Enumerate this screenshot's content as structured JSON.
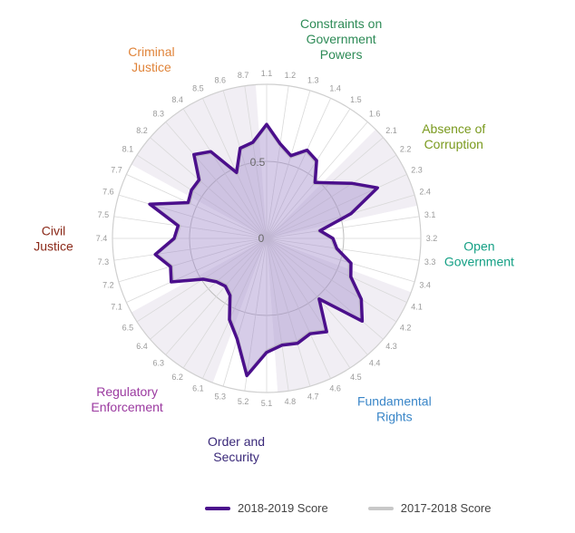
{
  "chart_data": {
    "type": "radar",
    "rlim": [
      0,
      1
    ],
    "ring_labels": [
      "0",
      "0.5"
    ],
    "factors": [
      {
        "name": [
          "Constraints on",
          "Government",
          "Powers"
        ],
        "color": "#2e8b57"
      },
      {
        "name": [
          "Absence of",
          "Corruption"
        ],
        "color": "#7a9a1e"
      },
      {
        "name": [
          "Open",
          "Government"
        ],
        "color": "#15a085"
      },
      {
        "name": [
          "Fundamental",
          "Rights"
        ],
        "color": "#3a86c8"
      },
      {
        "name": [
          "Order and",
          "Security"
        ],
        "color": "#3b2a7a"
      },
      {
        "name": [
          "Regulatory",
          "Enforcement"
        ],
        "color": "#9b3aa0"
      },
      {
        "name": [
          "Civil",
          "Justice"
        ],
        "color": "#8b2a1a"
      },
      {
        "name": [
          "Criminal",
          "Justice"
        ],
        "color": "#e0843a"
      }
    ],
    "categories": [
      "1.1",
      "1.2",
      "1.3",
      "1.4",
      "1.5",
      "1.6",
      "2.1",
      "2.2",
      "2.3",
      "2.4",
      "3.1",
      "3.2",
      "3.3",
      "3.4",
      "4.1",
      "4.2",
      "4.3",
      "4.4",
      "4.5",
      "4.6",
      "4.7",
      "4.8",
      "5.1",
      "5.2",
      "5.3",
      "6.1",
      "6.2",
      "6.3",
      "6.4",
      "6.5",
      "7.1",
      "7.2",
      "7.3",
      "7.4",
      "7.5",
      "7.6",
      "7.7",
      "8.1",
      "8.2",
      "8.3",
      "8.4",
      "8.5",
      "8.6",
      "8.7"
    ],
    "series": [
      {
        "name": "2018-2019 Score",
        "color": "#4b0f8c",
        "values": [
          0.74,
          0.62,
          0.56,
          0.63,
          0.6,
          0.48,
          0.55,
          0.66,
          0.79,
          0.57,
          0.35,
          0.43,
          0.46,
          0.57,
          0.6,
          0.73,
          0.82,
          0.52,
          0.72,
          0.68,
          0.71,
          0.7,
          0.74,
          0.9,
          0.68,
          0.58,
          0.44,
          0.41,
          0.43,
          0.49,
          0.68,
          0.65,
          0.73,
          0.6,
          0.58,
          0.79,
          0.56,
          0.58,
          0.58,
          0.72,
          0.67,
          0.47,
          0.61,
          0.63
        ]
      },
      {
        "name": "2017-2018 Score",
        "color": "#c8c8c8",
        "values": [
          0.73,
          0.61,
          0.55,
          0.62,
          0.59,
          0.47,
          0.54,
          0.65,
          0.78,
          0.56,
          0.34,
          0.42,
          0.45,
          0.56,
          0.59,
          0.72,
          0.81,
          0.51,
          0.71,
          0.67,
          0.7,
          0.69,
          0.73,
          0.89,
          0.67,
          0.57,
          0.43,
          0.4,
          0.42,
          0.48,
          0.67,
          0.64,
          0.72,
          0.59,
          0.57,
          0.78,
          0.55,
          0.57,
          0.57,
          0.71,
          0.66,
          0.46,
          0.6,
          0.62
        ]
      }
    ],
    "legend_position": "bottom-center",
    "grid": true
  }
}
